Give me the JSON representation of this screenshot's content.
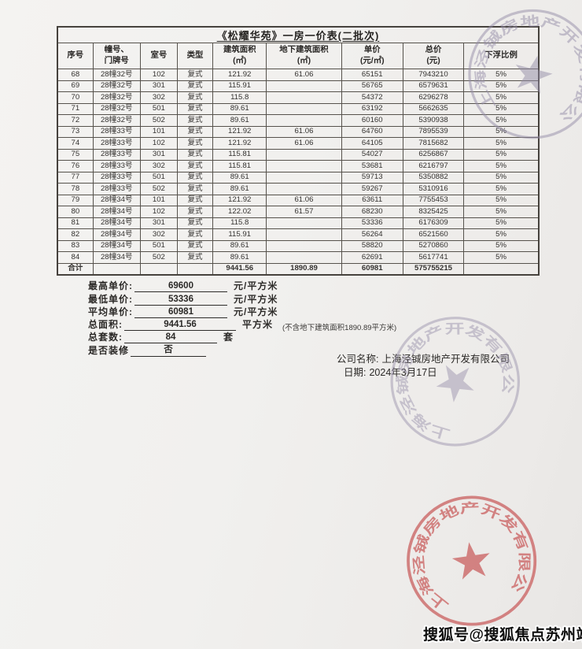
{
  "page": {
    "title": "《松耀华苑》一房一价表(二批次)",
    "watermark": "搜狐号@搜狐焦点苏州站"
  },
  "table": {
    "headers": [
      "序号",
      "幢号、\n门牌号",
      "室号",
      "类型",
      "建筑面积\n(㎡)",
      "地下建筑面积\n(㎡)",
      "单价\n(元/㎡)",
      "总价\n(元)",
      "下浮比例"
    ],
    "rows": [
      [
        "68",
        "28幢32号",
        "102",
        "复式",
        "121.92",
        "61.06",
        "65151",
        "7943210",
        "5%"
      ],
      [
        "69",
        "28幢32号",
        "301",
        "复式",
        "115.91",
        "",
        "56765",
        "6579631",
        "5%"
      ],
      [
        "70",
        "28幢32号",
        "302",
        "复式",
        "115.8",
        "",
        "54372",
        "6296278",
        "5%"
      ],
      [
        "71",
        "28幢32号",
        "501",
        "复式",
        "89.61",
        "",
        "63192",
        "5662635",
        "5%"
      ],
      [
        "72",
        "28幢32号",
        "502",
        "复式",
        "89.61",
        "",
        "60160",
        "5390938",
        "5%"
      ],
      [
        "73",
        "28幢33号",
        "101",
        "复式",
        "121.92",
        "61.06",
        "64760",
        "7895539",
        "5%"
      ],
      [
        "74",
        "28幢33号",
        "102",
        "复式",
        "121.92",
        "61.06",
        "64105",
        "7815682",
        "5%"
      ],
      [
        "75",
        "28幢33号",
        "301",
        "复式",
        "115.81",
        "",
        "54027",
        "6256867",
        "5%"
      ],
      [
        "76",
        "28幢33号",
        "302",
        "复式",
        "115.81",
        "",
        "53681",
        "6216797",
        "5%"
      ],
      [
        "77",
        "28幢33号",
        "501",
        "复式",
        "89.61",
        "",
        "59713",
        "5350882",
        "5%"
      ],
      [
        "78",
        "28幢33号",
        "502",
        "复式",
        "89.61",
        "",
        "59267",
        "5310916",
        "5%"
      ],
      [
        "79",
        "28幢34号",
        "101",
        "复式",
        "121.92",
        "61.06",
        "63611",
        "7755453",
        "5%"
      ],
      [
        "80",
        "28幢34号",
        "102",
        "复式",
        "122.02",
        "61.57",
        "68230",
        "8325425",
        "5%"
      ],
      [
        "81",
        "28幢34号",
        "301",
        "复式",
        "115.8",
        "",
        "53336",
        "6176309",
        "5%"
      ],
      [
        "82",
        "28幢34号",
        "302",
        "复式",
        "115.91",
        "",
        "56264",
        "6521560",
        "5%"
      ],
      [
        "83",
        "28幢34号",
        "501",
        "复式",
        "89.61",
        "",
        "58820",
        "5270860",
        "5%"
      ],
      [
        "84",
        "28幢34号",
        "502",
        "复式",
        "89.61",
        "",
        "62691",
        "5617741",
        "5%"
      ]
    ],
    "total_row": [
      "合计",
      "",
      "",
      "",
      "9441.56",
      "1890.89",
      "60981",
      "575755215",
      ""
    ]
  },
  "summary": {
    "lines": [
      {
        "label": "最高单价:",
        "value": "69600",
        "unit": "元/平方米",
        "note": ""
      },
      {
        "label": "最低单价:",
        "value": "53336",
        "unit": "元/平方米",
        "note": ""
      },
      {
        "label": "平均单价:",
        "value": "60981",
        "unit": "元/平方米",
        "note": ""
      },
      {
        "label": "总面积:",
        "value": "9441.56",
        "unit": "平方米",
        "note": "(不含地下建筑面积1890.89平方米)"
      },
      {
        "label": "总套数:",
        "value": "84",
        "unit": "套",
        "note": ""
      },
      {
        "label": "是否装修",
        "value": "否",
        "unit": "",
        "note": ""
      }
    ]
  },
  "company": {
    "name_label": "公司名称:",
    "name": "上海泾铖房地产开发有限公司",
    "date_label": "日期:",
    "date": "2024年3月17日"
  },
  "stamps": {
    "seal_text": "上海泾铖房地产开发有限公司",
    "star_icon": "★",
    "red_color": "#c95a5a",
    "gray_color": "#958da8"
  }
}
